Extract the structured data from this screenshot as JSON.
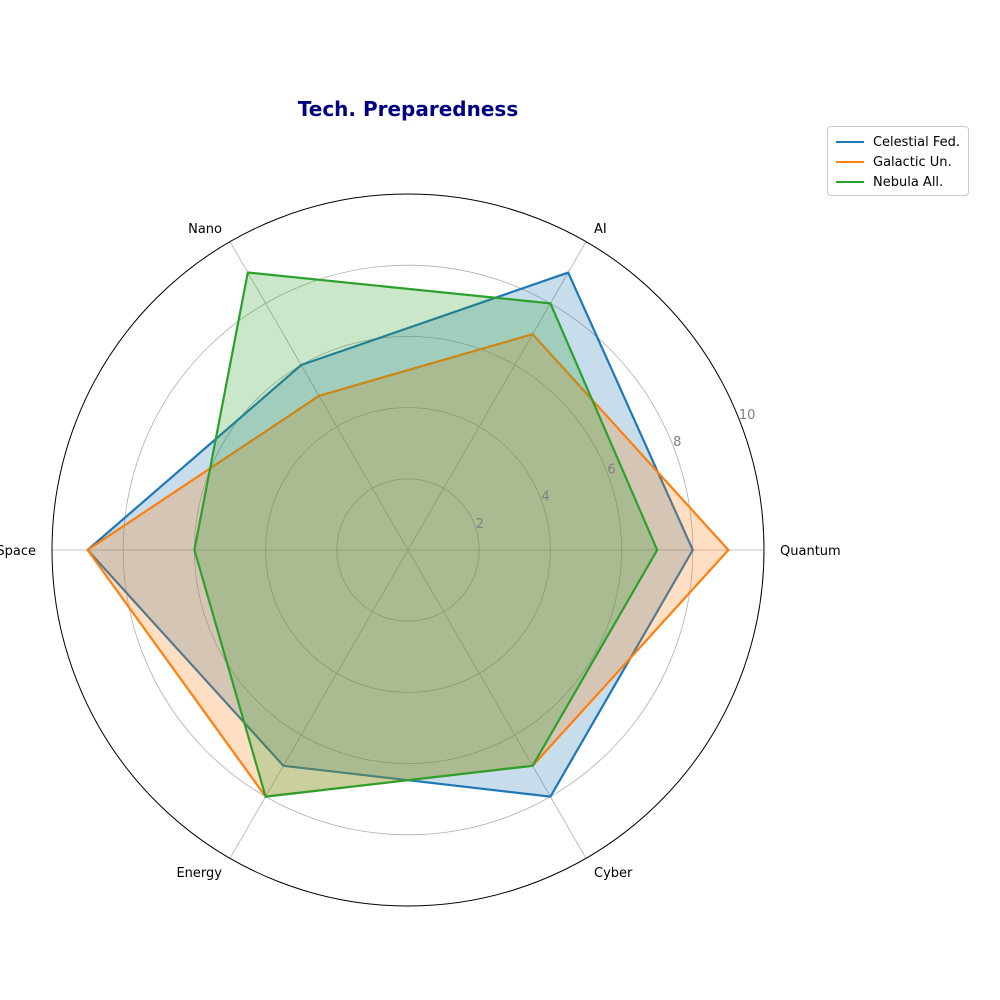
{
  "chart_data": {
    "type": "radar",
    "title": "Tech. Preparedness",
    "categories": [
      "Quantum",
      "AI",
      "Nano",
      "Space",
      "Energy",
      "Cyber"
    ],
    "rlim": [
      0,
      10
    ],
    "rticks": [
      "2",
      "4",
      "6",
      "8",
      "10"
    ],
    "rtick_values": [
      2,
      4,
      6,
      8,
      10
    ],
    "grid": true,
    "legend_position": "top-right",
    "series": [
      {
        "name": "Celestial Fed.",
        "values": [
          8,
          9,
          6,
          9,
          7,
          8
        ],
        "color": "#1f77b4"
      },
      {
        "name": "Galactic Un.",
        "values": [
          9,
          7,
          5,
          9,
          8,
          7
        ],
        "color": "#ff7f0e"
      },
      {
        "name": "Nebula All.",
        "values": [
          7,
          8,
          9,
          6,
          8,
          7
        ],
        "color": "#2ca02c"
      }
    ]
  }
}
